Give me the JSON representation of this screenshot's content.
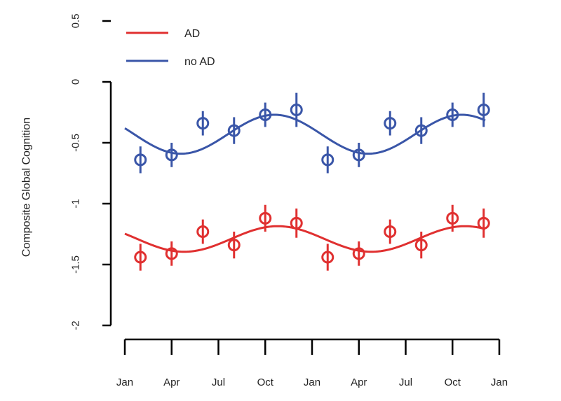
{
  "chart_data": {
    "type": "line",
    "title": "",
    "xlabel": "",
    "ylabel": "Composite Global Cognition",
    "x_ticks": [
      "Jan",
      "Apr",
      "Jul",
      "Oct",
      "Jan",
      "Apr",
      "Jul",
      "Oct",
      "Jan"
    ],
    "y_ticks": [
      "0.5",
      "0",
      "-0.5",
      "-1",
      "-1.5",
      "-2"
    ],
    "y_tick_values": [
      0.5,
      0,
      -0.5,
      -1,
      -1.5,
      -2
    ],
    "ylim": [
      -2,
      0.5
    ],
    "xlim_months": [
      0,
      24
    ],
    "grid": false,
    "legend_position": "top-left",
    "series": [
      {
        "name": "AD",
        "color": "#e03030",
        "fit": {
          "mean": -1.29,
          "amplitude": 0.105,
          "peak_month": 9.8
        },
        "points": [
          {
            "x": 1,
            "y": -1.44,
            "err": 0.11
          },
          {
            "x": 3,
            "y": -1.41,
            "err": 0.1
          },
          {
            "x": 5,
            "y": -1.23,
            "err": 0.1
          },
          {
            "x": 7,
            "y": -1.34,
            "err": 0.11
          },
          {
            "x": 9,
            "y": -1.12,
            "err": 0.11
          },
          {
            "x": 11,
            "y": -1.16,
            "err": 0.12
          },
          {
            "x": 13,
            "y": -1.44,
            "err": 0.11
          },
          {
            "x": 15,
            "y": -1.41,
            "err": 0.1
          },
          {
            "x": 17,
            "y": -1.23,
            "err": 0.1
          },
          {
            "x": 19,
            "y": -1.34,
            "err": 0.11
          },
          {
            "x": 21,
            "y": -1.12,
            "err": 0.11
          },
          {
            "x": 23,
            "y": -1.16,
            "err": 0.12
          }
        ]
      },
      {
        "name": "no AD",
        "color": "#3a56a8",
        "fit": {
          "mean": -0.43,
          "amplitude": 0.16,
          "peak_month": 9.6
        },
        "points": [
          {
            "x": 1,
            "y": -0.64,
            "err": 0.11
          },
          {
            "x": 3,
            "y": -0.6,
            "err": 0.1
          },
          {
            "x": 5,
            "y": -0.34,
            "err": 0.1
          },
          {
            "x": 7,
            "y": -0.4,
            "err": 0.11
          },
          {
            "x": 9,
            "y": -0.27,
            "err": 0.1
          },
          {
            "x": 11,
            "y": -0.23,
            "err": 0.14
          },
          {
            "x": 13,
            "y": -0.64,
            "err": 0.11
          },
          {
            "x": 15,
            "y": -0.6,
            "err": 0.1
          },
          {
            "x": 17,
            "y": -0.34,
            "err": 0.1
          },
          {
            "x": 19,
            "y": -0.4,
            "err": 0.11
          },
          {
            "x": 21,
            "y": -0.27,
            "err": 0.1
          },
          {
            "x": 23,
            "y": -0.23,
            "err": 0.14
          }
        ]
      }
    ]
  }
}
